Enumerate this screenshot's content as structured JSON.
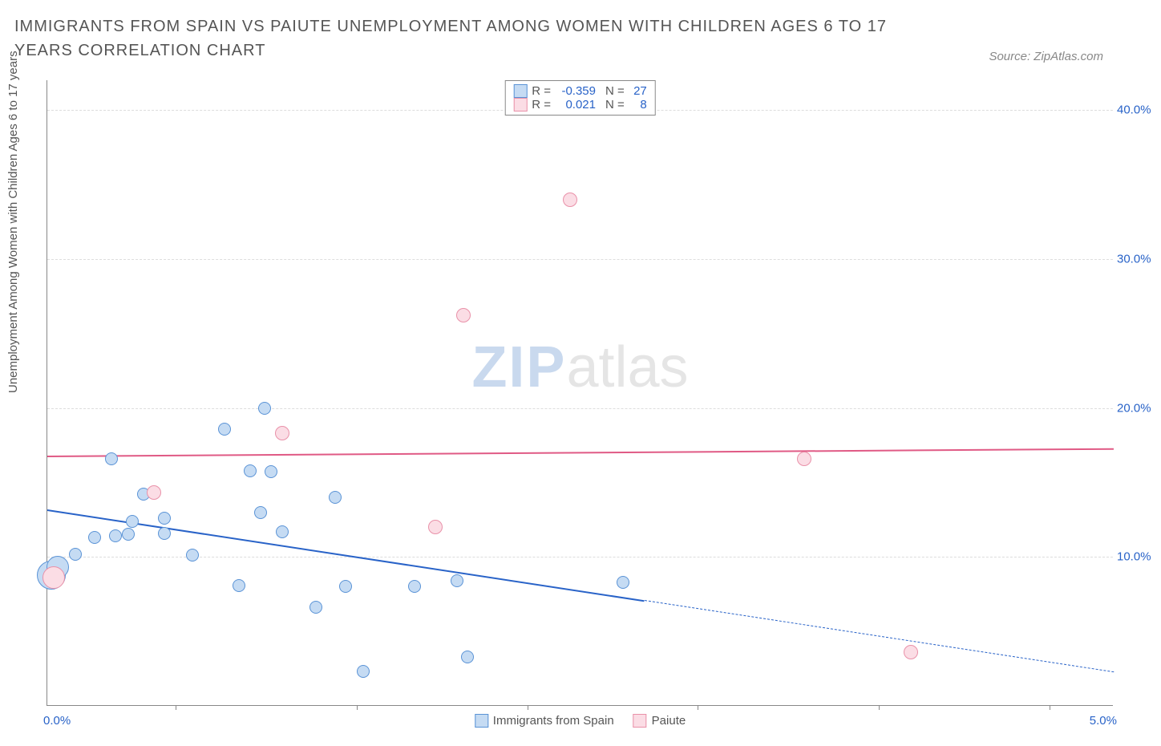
{
  "title": "IMMIGRANTS FROM SPAIN VS PAIUTE UNEMPLOYMENT AMONG WOMEN WITH CHILDREN AGES 6 TO 17 YEARS CORRELATION CHART",
  "source": "Source: ZipAtlas.com",
  "ylabel": "Unemployment Among Women with Children Ages 6 to 17 years",
  "chart": {
    "type": "scatter",
    "xlim": [
      0,
      5
    ],
    "ylim": [
      0,
      42
    ],
    "yticks": [
      {
        "v": 10,
        "label": "10.0%"
      },
      {
        "v": 20,
        "label": "20.0%"
      },
      {
        "v": 30,
        "label": "30.0%"
      },
      {
        "v": 40,
        "label": "40.0%"
      }
    ],
    "xticks": [
      0.6,
      1.45,
      2.25,
      3.05,
      3.9,
      4.7
    ],
    "x_first_label": "0.0%",
    "x_last_label": "5.0%",
    "background_color": "#ffffff",
    "grid_color": "#dddddd",
    "series": {
      "blue": {
        "label": "Immigrants from Spain",
        "fill": "#c5dbf3",
        "stroke": "#5a93d6",
        "stroke_dark": "#2963c8",
        "r_radius": 8,
        "points": [
          {
            "x": 0.02,
            "y": 8.8,
            "r": 18
          },
          {
            "x": 0.05,
            "y": 9.3,
            "r": 14
          },
          {
            "x": 0.13,
            "y": 10.2,
            "r": 8
          },
          {
            "x": 0.22,
            "y": 11.3,
            "r": 8
          },
          {
            "x": 0.3,
            "y": 16.6,
            "r": 8
          },
          {
            "x": 0.32,
            "y": 11.4,
            "r": 8
          },
          {
            "x": 0.38,
            "y": 11.5,
            "r": 8
          },
          {
            "x": 0.4,
            "y": 12.4,
            "r": 8
          },
          {
            "x": 0.45,
            "y": 14.2,
            "r": 8
          },
          {
            "x": 0.55,
            "y": 12.6,
            "r": 8
          },
          {
            "x": 0.55,
            "y": 11.6,
            "r": 8
          },
          {
            "x": 0.68,
            "y": 10.1,
            "r": 8
          },
          {
            "x": 0.83,
            "y": 18.6,
            "r": 8
          },
          {
            "x": 0.9,
            "y": 8.1,
            "r": 8
          },
          {
            "x": 0.95,
            "y": 15.8,
            "r": 8
          },
          {
            "x": 1.0,
            "y": 13.0,
            "r": 8
          },
          {
            "x": 1.02,
            "y": 20.0,
            "r": 8
          },
          {
            "x": 1.05,
            "y": 15.7,
            "r": 8
          },
          {
            "x": 1.1,
            "y": 11.7,
            "r": 8
          },
          {
            "x": 1.26,
            "y": 6.6,
            "r": 8
          },
          {
            "x": 1.35,
            "y": 14.0,
            "r": 8
          },
          {
            "x": 1.4,
            "y": 8.0,
            "r": 8
          },
          {
            "x": 1.48,
            "y": 2.3,
            "r": 8
          },
          {
            "x": 1.72,
            "y": 8.0,
            "r": 8
          },
          {
            "x": 1.92,
            "y": 8.4,
            "r": 8
          },
          {
            "x": 1.97,
            "y": 3.3,
            "r": 8
          },
          {
            "x": 2.7,
            "y": 8.3,
            "r": 8
          }
        ],
        "trend": {
          "x1": 0,
          "y1": 13.2,
          "x2": 2.8,
          "y2": 7.1,
          "color": "#2963c8",
          "width": 2.5,
          "dashed": false
        },
        "trend_ext": {
          "x1": 2.8,
          "y1": 7.1,
          "x2": 5.0,
          "y2": 2.3,
          "color": "#2963c8",
          "width": 1.5,
          "dashed": true
        }
      },
      "pink": {
        "label": "Paiute",
        "fill": "#fbdde5",
        "stroke": "#e991a9",
        "stroke_dark": "#e05a85",
        "r_radius": 9,
        "points": [
          {
            "x": 0.03,
            "y": 8.6,
            "r": 14
          },
          {
            "x": 0.5,
            "y": 14.3,
            "r": 9
          },
          {
            "x": 1.1,
            "y": 18.3,
            "r": 9
          },
          {
            "x": 1.82,
            "y": 12.0,
            "r": 9
          },
          {
            "x": 1.95,
            "y": 26.2,
            "r": 9
          },
          {
            "x": 2.45,
            "y": 34.0,
            "r": 9
          },
          {
            "x": 3.55,
            "y": 16.6,
            "r": 9
          },
          {
            "x": 4.05,
            "y": 3.6,
            "r": 9
          }
        ],
        "trend": {
          "x1": 0,
          "y1": 16.8,
          "x2": 5.0,
          "y2": 17.3,
          "color": "#e05a85",
          "width": 2,
          "dashed": false
        }
      }
    }
  },
  "legend_top": [
    {
      "color": "blue",
      "r": "-0.359",
      "n": "27"
    },
    {
      "color": "pink",
      "r": "0.021",
      "n": "8"
    }
  ],
  "legend_labels": {
    "r": "R =",
    "n": "N ="
  },
  "watermark": {
    "a": "ZIP",
    "b": "atlas"
  }
}
